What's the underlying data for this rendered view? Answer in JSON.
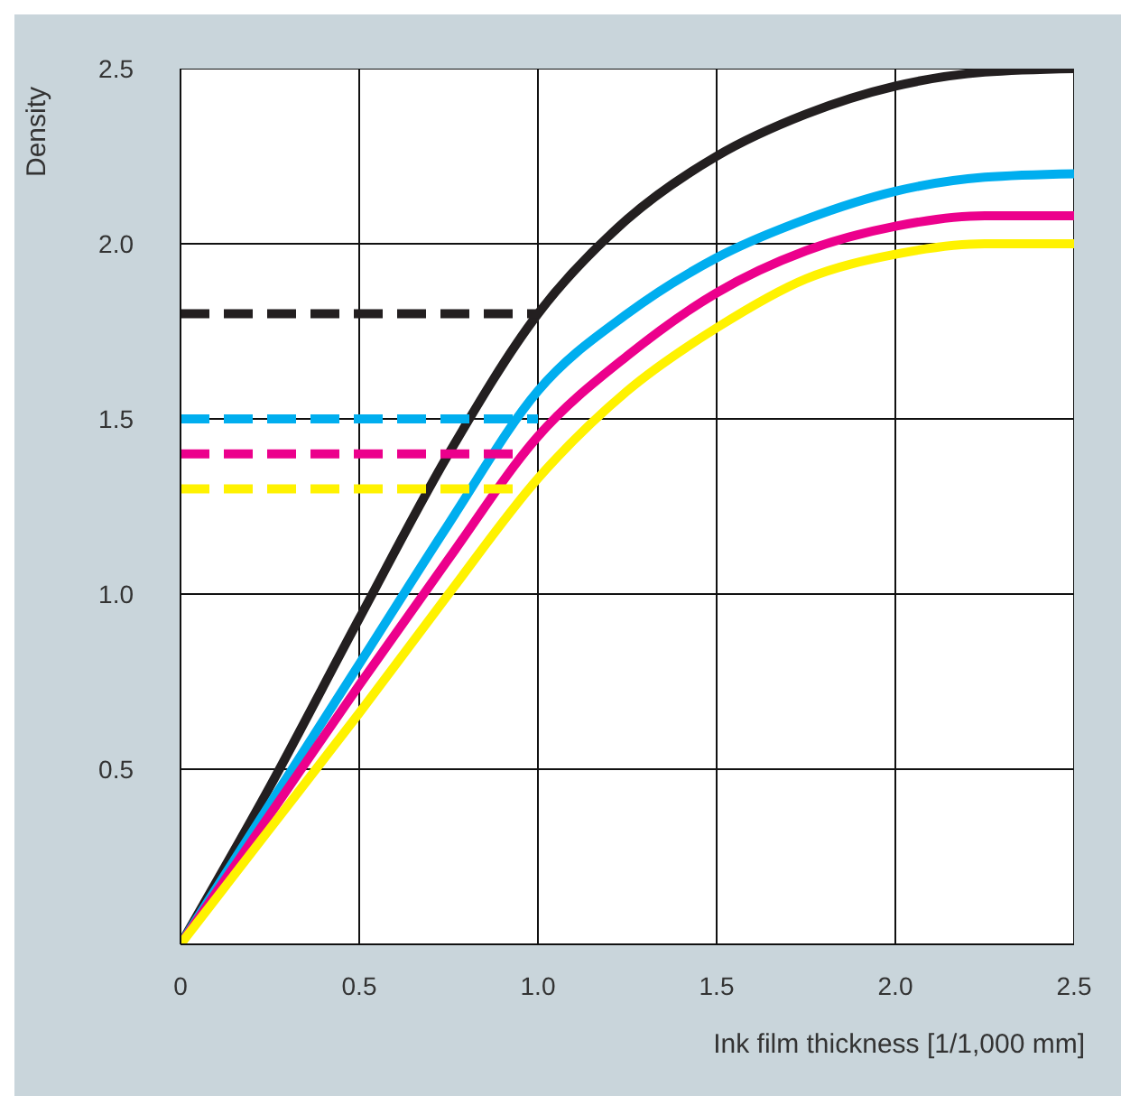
{
  "chart_data": {
    "type": "line",
    "xlabel": "Ink film thickness [1/1,000 mm]",
    "ylabel": "Density",
    "xlim": [
      0,
      2.5
    ],
    "ylim": [
      0,
      2.5
    ],
    "xticks": [
      0,
      0.5,
      {
        "value": 1,
        "label": "1.0"
      },
      1.5,
      {
        "value": 2,
        "label": "2.0"
      },
      2.5
    ],
    "yticks": [
      {
        "value": 0,
        "label": null
      },
      0.5,
      {
        "value": 1,
        "label": "1.0"
      },
      1.5,
      {
        "value": 2,
        "label": "2.0"
      },
      2.5
    ],
    "grid": true,
    "marker": "none",
    "line_style": "solid",
    "series": [
      {
        "color": "#231f20",
        "x": [
          0,
          0.25,
          0.5,
          0.75,
          1,
          1.25,
          1.5,
          1.75,
          2,
          2.25,
          2.5
        ],
        "values": [
          0,
          0.45,
          0.93,
          1.4,
          1.8,
          2.07,
          2.25,
          2.37,
          2.45,
          2.49,
          2.5
        ]
      },
      {
        "color": "#00aeef",
        "x": [
          0,
          0.25,
          0.5,
          0.75,
          1,
          1.25,
          1.5,
          1.75,
          2,
          2.25,
          2.5
        ],
        "values": [
          0,
          0.4,
          0.8,
          1.2,
          1.58,
          1.8,
          1.96,
          2.07,
          2.15,
          2.19,
          2.2
        ]
      },
      {
        "color": "#ec008c",
        "x": [
          0,
          0.25,
          0.5,
          0.75,
          1,
          1.25,
          1.5,
          1.75,
          2,
          2.25,
          2.5
        ],
        "values": [
          0,
          0.37,
          0.74,
          1.1,
          1.45,
          1.68,
          1.86,
          1.98,
          2.05,
          2.08,
          2.08
        ]
      },
      {
        "color": "#fff200",
        "x": [
          0,
          0.25,
          0.5,
          0.75,
          1,
          1.25,
          1.5,
          1.75,
          2,
          2.25,
          2.5
        ],
        "values": [
          0,
          0.33,
          0.66,
          1.0,
          1.33,
          1.58,
          1.76,
          1.9,
          1.97,
          2.0,
          2.0
        ]
      },
      {
        "color": "#231f20",
        "line_style": "dashed",
        "x": [
          0,
          1
        ],
        "values": [
          1.8,
          1.8
        ]
      },
      {
        "color": "#00aeef",
        "line_style": "dashed",
        "x": [
          0,
          1
        ],
        "values": [
          1.5,
          1.5
        ]
      },
      {
        "color": "#ec008c",
        "line_style": "dashed",
        "x": [
          0,
          0.95
        ],
        "values": [
          1.4,
          1.4
        ]
      },
      {
        "color": "#fff200",
        "line_style": "dashed",
        "x": [
          0,
          0.95
        ],
        "values": [
          1.3,
          1.3
        ]
      }
    ]
  }
}
